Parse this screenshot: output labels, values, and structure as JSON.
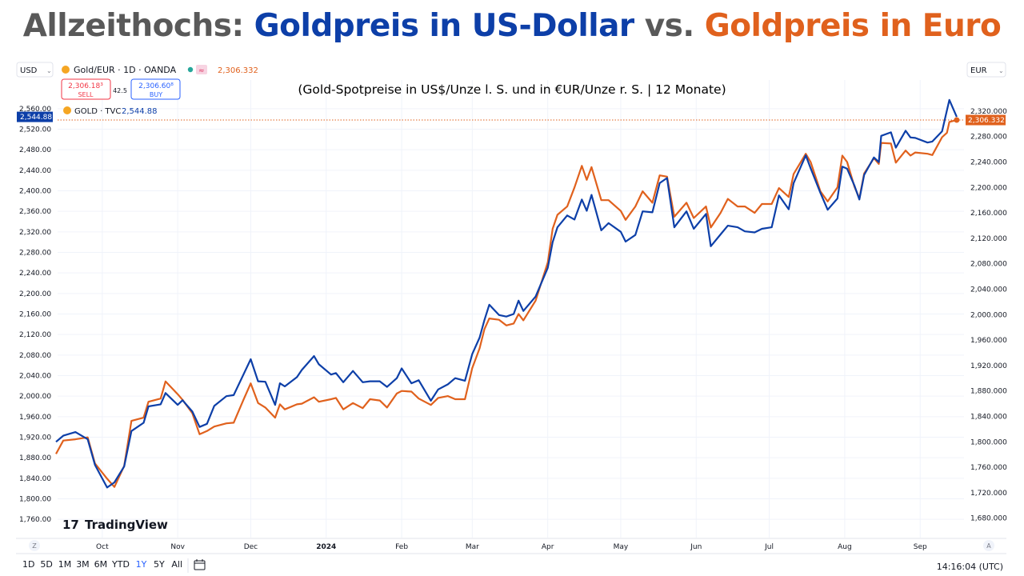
{
  "headline": {
    "part1": "Allzeithochs: ",
    "part2": "Goldpreis in US-Dollar",
    "part3": " vs. ",
    "part4": "Goldpreis in Euro"
  },
  "colors": {
    "usd": "#0d3fa8",
    "eur": "#e0611d",
    "title_gray": "#595959",
    "grid": "#f0f3fa",
    "text": "#131722"
  },
  "header": {
    "left_currency": "USD",
    "right_currency": "EUR",
    "symbol": "Gold/EUR · 1D · OANDA",
    "symbol_value": "2,306.332",
    "sell_price": "2,306.18³",
    "sell_label": "SELL",
    "spread": "42.5",
    "buy_price": "2,306.60⁸",
    "buy_label": "BUY",
    "compare_symbol": "GOLD · TVC",
    "compare_value": "2,544.88",
    "last_usd": "2,544.88",
    "last_eur": "2,306.332"
  },
  "subtitle": "(Gold-Spotpreise in US$/Unze l. S. und in €UR/Unze r. S. | 12 Monate)",
  "logo_text": "TradingView",
  "time_ranges": [
    "1D",
    "5D",
    "1M",
    "3M",
    "6M",
    "YTD",
    "1Y",
    "5Y",
    "All"
  ],
  "active_range": "1Y",
  "clock": "14:16:04 (UTC)",
  "corner_left": "Z",
  "corner_right": "A",
  "chart_data": {
    "type": "line",
    "title": "(Gold-Spotpreise in US$/Unze l. S. und in €UR/Unze r. S. | 12 Monate)",
    "x_labels": [
      "Oct",
      "Nov",
      "Dec",
      "2024",
      "Feb",
      "Mar",
      "Apr",
      "May",
      "Jun",
      "Jul",
      "Aug",
      "Sep"
    ],
    "x_label_dates": [
      "2023-10-01",
      "2023-11-01",
      "2023-12-01",
      "2024-01-01",
      "2024-02-01",
      "2024-03-01",
      "2024-04-01",
      "2024-05-01",
      "2024-06-01",
      "2024-07-01",
      "2024-08-01",
      "2024-09-01"
    ],
    "x_range": [
      "2023-09-12",
      "2024-09-19"
    ],
    "y_left": {
      "range": [
        1740,
        2580
      ],
      "ticks": [
        "1,760.00",
        "1,800.00",
        "1,840.00",
        "1,880.00",
        "1,920.00",
        "1,960.00",
        "2,000.00",
        "2,040.00",
        "2,080.00",
        "2,120.00",
        "2,160.00",
        "2,200.00",
        "2,240.00",
        "2,280.00",
        "2,320.00",
        "2,360.00",
        "2,400.00",
        "2,440.00",
        "2,480.00",
        "2,520.00",
        "2,560.00"
      ],
      "tick_values": [
        1760,
        1800,
        1840,
        1880,
        1920,
        1960,
        2000,
        2040,
        2080,
        2120,
        2160,
        2200,
        2240,
        2280,
        2320,
        2360,
        2400,
        2440,
        2480,
        2520,
        2560
      ]
    },
    "y_right": {
      "range": [
        1662,
        2340
      ],
      "ticks": [
        "1,680.000",
        "1,720.000",
        "1,760.000",
        "1,800.000",
        "1,840.000",
        "1,880.000",
        "1,920.000",
        "1,960.000",
        "2,000.000",
        "2,040.000",
        "2,080.000",
        "2,120.000",
        "2,160.000",
        "2,200.000",
        "2,240.000",
        "2,280.000",
        "2,320.000"
      ],
      "tick_values": [
        1680,
        1720,
        1760,
        1800,
        1840,
        1880,
        1920,
        1960,
        2000,
        2040,
        2080,
        2120,
        2160,
        2200,
        2240,
        2280,
        2320
      ]
    },
    "grid": true,
    "series": [
      {
        "name": "GOLD · TVC",
        "axis": "left",
        "unit": "USD",
        "points": [
          [
            "2023-09-12",
            1911
          ],
          [
            "2023-09-15",
            1923
          ],
          [
            "2023-09-20",
            1930
          ],
          [
            "2023-09-25",
            1916
          ],
          [
            "2023-09-28",
            1866
          ],
          [
            "2023-10-03",
            1822
          ],
          [
            "2023-10-06",
            1832
          ],
          [
            "2023-10-10",
            1863
          ],
          [
            "2023-10-13",
            1932
          ],
          [
            "2023-10-18",
            1948
          ],
          [
            "2023-10-20",
            1980
          ],
          [
            "2023-10-25",
            1984
          ],
          [
            "2023-10-27",
            2006
          ],
          [
            "2023-11-01",
            1983
          ],
          [
            "2023-11-03",
            1992
          ],
          [
            "2023-11-07",
            1970
          ],
          [
            "2023-11-10",
            1940
          ],
          [
            "2023-11-13",
            1946
          ],
          [
            "2023-11-16",
            1981
          ],
          [
            "2023-11-21",
            2000
          ],
          [
            "2023-11-24",
            2002
          ],
          [
            "2023-11-28",
            2042
          ],
          [
            "2023-12-01",
            2072
          ],
          [
            "2023-12-04",
            2029
          ],
          [
            "2023-12-07",
            2028
          ],
          [
            "2023-12-11",
            1983
          ],
          [
            "2023-12-13",
            2025
          ],
          [
            "2023-12-15",
            2019
          ],
          [
            "2023-12-20",
            2037
          ],
          [
            "2023-12-22",
            2051
          ],
          [
            "2023-12-27",
            2078
          ],
          [
            "2023-12-29",
            2062
          ],
          [
            "2024-01-03",
            2042
          ],
          [
            "2024-01-05",
            2045
          ],
          [
            "2024-01-08",
            2027
          ],
          [
            "2024-01-12",
            2049
          ],
          [
            "2024-01-16",
            2027
          ],
          [
            "2024-01-19",
            2029
          ],
          [
            "2024-01-23",
            2029
          ],
          [
            "2024-01-26",
            2018
          ],
          [
            "2024-01-30",
            2035
          ],
          [
            "2024-02-01",
            2054
          ],
          [
            "2024-02-05",
            2025
          ],
          [
            "2024-02-08",
            2031
          ],
          [
            "2024-02-13",
            1991
          ],
          [
            "2024-02-16",
            2013
          ],
          [
            "2024-02-20",
            2023
          ],
          [
            "2024-02-23",
            2035
          ],
          [
            "2024-02-27",
            2030
          ],
          [
            "2024-03-01",
            2082
          ],
          [
            "2024-03-04",
            2114
          ],
          [
            "2024-03-06",
            2148
          ],
          [
            "2024-03-08",
            2178
          ],
          [
            "2024-03-12",
            2158
          ],
          [
            "2024-03-15",
            2155
          ],
          [
            "2024-03-18",
            2160
          ],
          [
            "2024-03-20",
            2186
          ],
          [
            "2024-03-22",
            2166
          ],
          [
            "2024-03-27",
            2194
          ],
          [
            "2024-04-01",
            2250
          ],
          [
            "2024-04-03",
            2300
          ],
          [
            "2024-04-05",
            2329
          ],
          [
            "2024-04-09",
            2352
          ],
          [
            "2024-04-12",
            2344
          ],
          [
            "2024-04-15",
            2383
          ],
          [
            "2024-04-17",
            2361
          ],
          [
            "2024-04-19",
            2392
          ],
          [
            "2024-04-23",
            2323
          ],
          [
            "2024-04-26",
            2337
          ],
          [
            "2024-05-01",
            2320
          ],
          [
            "2024-05-03",
            2301
          ],
          [
            "2024-05-07",
            2314
          ],
          [
            "2024-05-10",
            2360
          ],
          [
            "2024-05-14",
            2358
          ],
          [
            "2024-05-17",
            2415
          ],
          [
            "2024-05-20",
            2425
          ],
          [
            "2024-05-23",
            2329
          ],
          [
            "2024-05-28",
            2360
          ],
          [
            "2024-05-31",
            2326
          ],
          [
            "2024-06-05",
            2355
          ],
          [
            "2024-06-07",
            2292
          ],
          [
            "2024-06-11",
            2315
          ],
          [
            "2024-06-14",
            2332
          ],
          [
            "2024-06-18",
            2329
          ],
          [
            "2024-06-21",
            2321
          ],
          [
            "2024-06-25",
            2319
          ],
          [
            "2024-06-28",
            2326
          ],
          [
            "2024-07-02",
            2329
          ],
          [
            "2024-07-05",
            2391
          ],
          [
            "2024-07-09",
            2364
          ],
          [
            "2024-07-11",
            2415
          ],
          [
            "2024-07-16",
            2469
          ],
          [
            "2024-07-18",
            2444
          ],
          [
            "2024-07-22",
            2396
          ],
          [
            "2024-07-25",
            2363
          ],
          [
            "2024-07-29",
            2385
          ],
          [
            "2024-07-31",
            2447
          ],
          [
            "2024-08-02",
            2443
          ],
          [
            "2024-08-05",
            2410
          ],
          [
            "2024-08-07",
            2383
          ],
          [
            "2024-08-09",
            2431
          ],
          [
            "2024-08-13",
            2465
          ],
          [
            "2024-08-15",
            2456
          ],
          [
            "2024-08-16",
            2507
          ],
          [
            "2024-08-20",
            2514
          ],
          [
            "2024-08-22",
            2484
          ],
          [
            "2024-08-26",
            2517
          ],
          [
            "2024-08-28",
            2504
          ],
          [
            "2024-08-30",
            2503
          ],
          [
            "2024-09-04",
            2494
          ],
          [
            "2024-09-06",
            2496
          ],
          [
            "2024-09-10",
            2516
          ],
          [
            "2024-09-12",
            2557
          ],
          [
            "2024-09-13",
            2577
          ],
          [
            "2024-09-16",
            2544
          ]
        ]
      },
      {
        "name": "Gold/EUR · 1D · OANDA",
        "axis": "right",
        "unit": "EUR",
        "points": [
          [
            "2023-09-12",
            1781
          ],
          [
            "2023-09-15",
            1802
          ],
          [
            "2023-09-20",
            1804
          ],
          [
            "2023-09-25",
            1807
          ],
          [
            "2023-09-28",
            1766
          ],
          [
            "2023-10-03",
            1742
          ],
          [
            "2023-10-06",
            1729
          ],
          [
            "2023-10-10",
            1762
          ],
          [
            "2023-10-13",
            1833
          ],
          [
            "2023-10-18",
            1838
          ],
          [
            "2023-10-20",
            1863
          ],
          [
            "2023-10-25",
            1868
          ],
          [
            "2023-10-27",
            1895
          ],
          [
            "2023-11-01",
            1875
          ],
          [
            "2023-11-03",
            1866
          ],
          [
            "2023-11-07",
            1845
          ],
          [
            "2023-11-10",
            1812
          ],
          [
            "2023-11-13",
            1817
          ],
          [
            "2023-11-16",
            1824
          ],
          [
            "2023-11-21",
            1829
          ],
          [
            "2023-11-24",
            1830
          ],
          [
            "2023-11-28",
            1866
          ],
          [
            "2023-12-01",
            1892
          ],
          [
            "2023-12-04",
            1861
          ],
          [
            "2023-12-07",
            1854
          ],
          [
            "2023-12-11",
            1838
          ],
          [
            "2023-12-13",
            1859
          ],
          [
            "2023-12-15",
            1851
          ],
          [
            "2023-12-20",
            1859
          ],
          [
            "2023-12-22",
            1860
          ],
          [
            "2023-12-27",
            1870
          ],
          [
            "2023-12-29",
            1863
          ],
          [
            "2024-01-03",
            1867
          ],
          [
            "2024-01-05",
            1869
          ],
          [
            "2024-01-08",
            1851
          ],
          [
            "2024-01-12",
            1861
          ],
          [
            "2024-01-16",
            1853
          ],
          [
            "2024-01-19",
            1867
          ],
          [
            "2024-01-23",
            1865
          ],
          [
            "2024-01-26",
            1854
          ],
          [
            "2024-01-30",
            1876
          ],
          [
            "2024-02-01",
            1880
          ],
          [
            "2024-02-05",
            1879
          ],
          [
            "2024-02-08",
            1868
          ],
          [
            "2024-02-13",
            1858
          ],
          [
            "2024-02-16",
            1869
          ],
          [
            "2024-02-20",
            1872
          ],
          [
            "2024-02-23",
            1867
          ],
          [
            "2024-02-27",
            1867
          ],
          [
            "2024-03-01",
            1916
          ],
          [
            "2024-03-04",
            1947
          ],
          [
            "2024-03-06",
            1977
          ],
          [
            "2024-03-08",
            1994
          ],
          [
            "2024-03-12",
            1992
          ],
          [
            "2024-03-15",
            1983
          ],
          [
            "2024-03-18",
            1986
          ],
          [
            "2024-03-20",
            2001
          ],
          [
            "2024-03-22",
            1991
          ],
          [
            "2024-03-27",
            2022
          ],
          [
            "2024-04-01",
            2082
          ],
          [
            "2024-04-03",
            2135
          ],
          [
            "2024-04-05",
            2157
          ],
          [
            "2024-04-09",
            2170
          ],
          [
            "2024-04-12",
            2200
          ],
          [
            "2024-04-15",
            2234
          ],
          [
            "2024-04-17",
            2212
          ],
          [
            "2024-04-19",
            2232
          ],
          [
            "2024-04-23",
            2180
          ],
          [
            "2024-04-26",
            2180
          ],
          [
            "2024-05-01",
            2163
          ],
          [
            "2024-05-03",
            2149
          ],
          [
            "2024-05-07",
            2170
          ],
          [
            "2024-05-10",
            2194
          ],
          [
            "2024-05-14",
            2176
          ],
          [
            "2024-05-17",
            2219
          ],
          [
            "2024-05-20",
            2217
          ],
          [
            "2024-05-23",
            2154
          ],
          [
            "2024-05-28",
            2176
          ],
          [
            "2024-05-31",
            2152
          ],
          [
            "2024-06-05",
            2170
          ],
          [
            "2024-06-07",
            2137
          ],
          [
            "2024-06-11",
            2160
          ],
          [
            "2024-06-14",
            2182
          ],
          [
            "2024-06-18",
            2170
          ],
          [
            "2024-06-21",
            2170
          ],
          [
            "2024-06-25",
            2160
          ],
          [
            "2024-06-28",
            2174
          ],
          [
            "2024-07-02",
            2174
          ],
          [
            "2024-07-05",
            2199
          ],
          [
            "2024-07-09",
            2185
          ],
          [
            "2024-07-11",
            2221
          ],
          [
            "2024-07-16",
            2253
          ],
          [
            "2024-07-18",
            2240
          ],
          [
            "2024-07-22",
            2194
          ],
          [
            "2024-07-25",
            2178
          ],
          [
            "2024-07-29",
            2200
          ],
          [
            "2024-07-31",
            2250
          ],
          [
            "2024-08-02",
            2240
          ],
          [
            "2024-08-05",
            2201
          ],
          [
            "2024-08-07",
            2183
          ],
          [
            "2024-08-09",
            2222
          ],
          [
            "2024-08-13",
            2246
          ],
          [
            "2024-08-15",
            2237
          ],
          [
            "2024-08-16",
            2270
          ],
          [
            "2024-08-20",
            2269
          ],
          [
            "2024-08-22",
            2239
          ],
          [
            "2024-08-26",
            2258
          ],
          [
            "2024-08-28",
            2250
          ],
          [
            "2024-08-30",
            2255
          ],
          [
            "2024-09-04",
            2253
          ],
          [
            "2024-09-06",
            2251
          ],
          [
            "2024-09-10",
            2279
          ],
          [
            "2024-09-12",
            2286
          ],
          [
            "2024-09-13",
            2303
          ],
          [
            "2024-09-16",
            2306
          ]
        ]
      }
    ]
  }
}
